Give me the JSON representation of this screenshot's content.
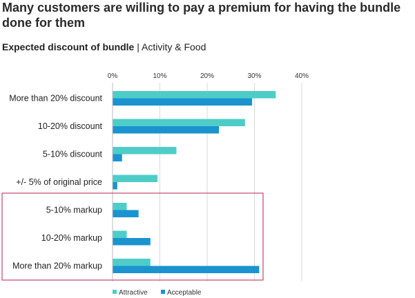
{
  "header": {
    "title": "Many customers are willing to pay a premium for having the bundle done for them",
    "subtitle_bold": "Expected discount of bundle",
    "subtitle_sep": " | ",
    "subtitle_rest": "Activity & Food"
  },
  "chart_data": {
    "type": "bar",
    "orientation": "horizontal",
    "categories": [
      "More than 20% discount",
      "10-20% discount",
      "5-10% discount",
      "+/- 5% of original price",
      "5-10% markup",
      "10-20% markup",
      "More than 20% markup"
    ],
    "series": [
      {
        "name": "Attractive",
        "color": "#4ecdc8",
        "values": [
          34.5,
          28,
          13.5,
          9.5,
          3,
          3,
          8
        ]
      },
      {
        "name": "Acceptable",
        "color": "#1a93cf",
        "values": [
          29.5,
          22.5,
          2,
          1,
          5.5,
          8,
          31
        ]
      }
    ],
    "x_ticks": [
      "0%",
      "10%",
      "20%",
      "30%",
      "40%"
    ],
    "xlim": [
      0,
      40
    ],
    "grid": "vertical",
    "legend": "bottom",
    "highlight_color": "#c7436a",
    "highlight_categories": [
      "5-10% markup",
      "10-20% markup",
      "More than 20% markup"
    ]
  }
}
